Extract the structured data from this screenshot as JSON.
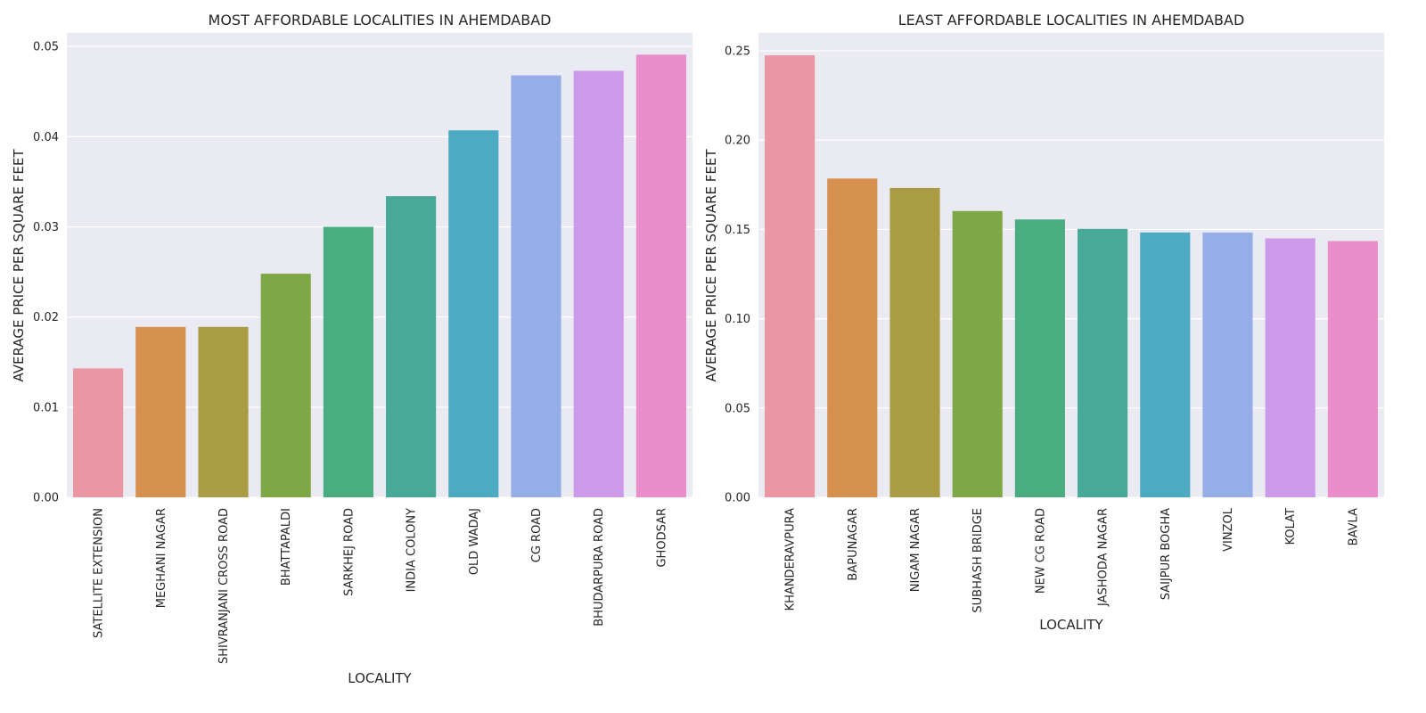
{
  "chart_data": [
    {
      "type": "bar",
      "title": "MOST AFFORDABLE LOCALITIES IN AHEMDABAD",
      "xlabel": "LOCALITY",
      "ylabel": "AVERAGE PRICE PER SQUARE FEET",
      "ylim": [
        0,
        0.0515
      ],
      "yticks": [
        "0.00",
        "0.01",
        "0.02",
        "0.03",
        "0.04",
        "0.05"
      ],
      "ytick_values": [
        0,
        0.01,
        0.02,
        0.03,
        0.04,
        0.05
      ],
      "grid": true,
      "categories": [
        "SATELLITE EXTENSION",
        "MEGHANI NAGAR",
        "SHIVRANJANI CROSS ROAD",
        "BHATTAPALDI",
        "SARKHEJ ROAD",
        "INDIA COLONY",
        "OLD WADAJ",
        "CG ROAD",
        "BHUDARPURA ROAD",
        "GHODSAR"
      ],
      "values": [
        0.0143,
        0.0189,
        0.0189,
        0.0248,
        0.03,
        0.0334,
        0.0407,
        0.0468,
        0.0473,
        0.0491
      ],
      "colors": [
        "#ea96a3",
        "#d7914f",
        "#aa9c45",
        "#7ea846",
        "#49ad7f",
        "#48a999",
        "#4cabc2",
        "#95aee8",
        "#cd9aea",
        "#ea8ecb"
      ]
    },
    {
      "type": "bar",
      "title": "LEAST AFFORDABLE LOCALITIES IN AHEMDABAD",
      "xlabel": "LOCALITY",
      "ylabel": "AVERAGE PRICE PER SQUARE FEET",
      "ylim": [
        0,
        0.26
      ],
      "yticks": [
        "0.00",
        "0.05",
        "0.10",
        "0.15",
        "0.20",
        "0.25"
      ],
      "ytick_values": [
        0,
        0.05,
        0.1,
        0.15,
        0.2,
        0.25
      ],
      "grid": true,
      "categories": [
        "KHANDERAVPURA",
        "BAPUNAGAR",
        "NIGAM NAGAR",
        "SUBHASH BRIDGE",
        "NEW CG ROAD",
        "JASHODA NAGAR",
        "SAIJPUR BOGHA",
        "VINZOL",
        "KOLAT",
        "BAVLA"
      ],
      "values": [
        0.2475,
        0.1785,
        0.1732,
        0.1603,
        0.1556,
        0.1503,
        0.1483,
        0.1483,
        0.145,
        0.1435
      ],
      "colors": [
        "#ea96a3",
        "#d7914f",
        "#aa9c45",
        "#7ea846",
        "#49ad7f",
        "#48a999",
        "#4cabc2",
        "#95aee8",
        "#cd9aea",
        "#ea8ecb"
      ]
    }
  ]
}
